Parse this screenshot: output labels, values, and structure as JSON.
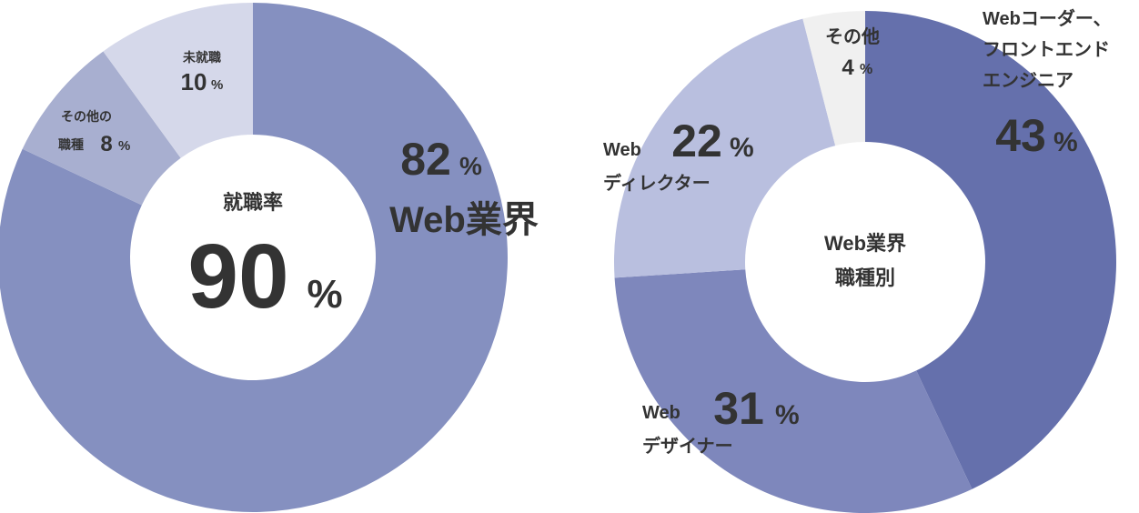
{
  "chart_data": [
    {
      "type": "pie",
      "style": "donut",
      "center_label": "就職率",
      "center_value": "90",
      "center_unit": "%",
      "slices": [
        {
          "label": "Web業界",
          "value": 82,
          "color": "#8590c0"
        },
        {
          "label": "その他の職種",
          "value": 8,
          "color": "#a8afd0"
        },
        {
          "label": "未就職",
          "value": 10,
          "color": "#d5d8ea"
        }
      ]
    },
    {
      "type": "pie",
      "style": "donut",
      "center_label_lines": [
        "Web業界",
        "職種別"
      ],
      "slices": [
        {
          "label": "Webコーダー、フロントエンドエンジニア",
          "value": 43,
          "color": "#6570ac"
        },
        {
          "label": "Webデザイナー",
          "value": 31,
          "color": "#7e87bc"
        },
        {
          "label": "Webディレクター",
          "value": 22,
          "color": "#b9bfdf"
        },
        {
          "label": "その他",
          "value": 4,
          "color": "#f0f0f0"
        }
      ]
    }
  ],
  "labels": {
    "left": {
      "web_value": "82",
      "web_unit": "%",
      "web_name": "Web業界",
      "other_name_1": "その他の",
      "other_name_2": "職種",
      "other_value": "8",
      "other_unit": "%",
      "none_name": "未就職",
      "none_value": "10",
      "none_unit": "%"
    },
    "right": {
      "coder_1": "Webコーダー、",
      "coder_2": "フロントエンド",
      "coder_3": "エンジニア",
      "coder_value": "43",
      "coder_unit": "%",
      "designer_1": "Web",
      "designer_2": "デザイナー",
      "designer_value": "31",
      "designer_unit": "%",
      "director_1": "Web",
      "director_2": "ディレクター",
      "director_value": "22",
      "director_unit": "%",
      "other_name": "その他",
      "other_value": "4",
      "other_unit": "%"
    }
  }
}
